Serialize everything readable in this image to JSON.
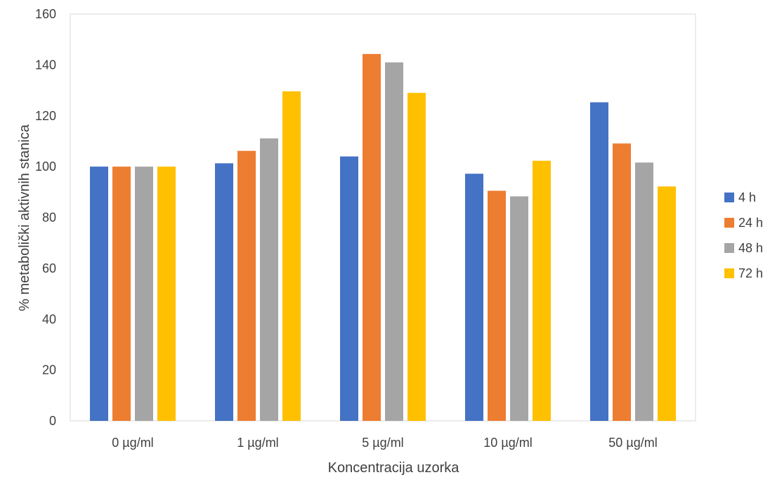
{
  "chart_data": {
    "type": "bar",
    "title": "",
    "xlabel": "Koncentracija uzorka",
    "ylabel": "% metabolički aktivnih  stanica",
    "categories": [
      "0 µg/ml",
      "1 µg/ml",
      "5 µg/ml",
      "10 µg/ml",
      "50 µg/ml"
    ],
    "ylim": [
      0,
      160
    ],
    "yticks": [
      0,
      20,
      40,
      60,
      80,
      100,
      120,
      140,
      160
    ],
    "grid": false,
    "legend_position": "right",
    "series": [
      {
        "name": "4 h",
        "color": "#4472C4",
        "values": [
          100,
          101.3,
          104,
          97.2,
          125.3
        ]
      },
      {
        "name": "24 h",
        "color": "#ED7D31",
        "values": [
          100,
          106.2,
          144.3,
          90.5,
          109.1
        ]
      },
      {
        "name": "48 h",
        "color": "#A5A5A5",
        "values": [
          100,
          111.1,
          141,
          88.3,
          101.6
        ]
      },
      {
        "name": "72 h",
        "color": "#FFC000",
        "values": [
          100,
          129.6,
          129,
          102.3,
          92.2
        ]
      }
    ]
  }
}
